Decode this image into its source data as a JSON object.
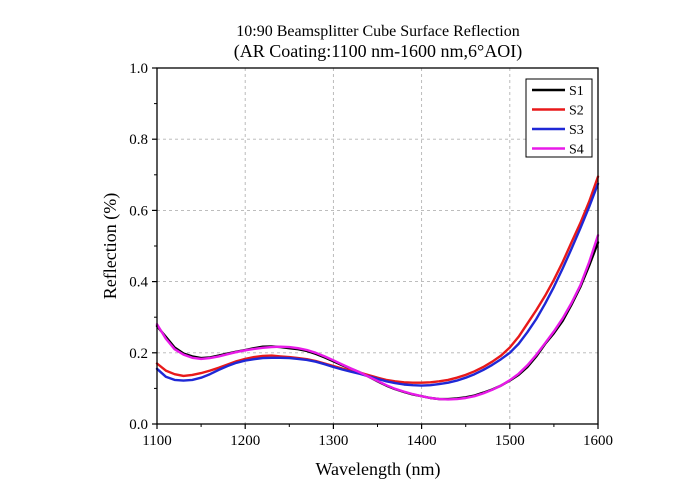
{
  "chart_data": {
    "type": "line",
    "title": "10:90 Beamsplitter Cube Surface Reflection",
    "subtitle": "(AR Coating:1100 nm-1600 nm,6°AOI)",
    "xlabel": "Wavelength (nm)",
    "ylabel": "Reflection (%)",
    "xlim": [
      1100,
      1600
    ],
    "ylim": [
      0.0,
      1.0
    ],
    "xticks": [
      "1100",
      "1200",
      "1300",
      "1400",
      "1500",
      "1600"
    ],
    "yticks": [
      "0.0",
      "0.2",
      "0.4",
      "0.6",
      "0.8",
      "1.0"
    ],
    "grid": true,
    "legend_position": "top-right",
    "series": [
      {
        "name": "S1",
        "color": "#000000",
        "x": [
          1100,
          1110,
          1120,
          1130,
          1140,
          1150,
          1160,
          1170,
          1180,
          1190,
          1200,
          1210,
          1220,
          1230,
          1240,
          1250,
          1260,
          1270,
          1280,
          1290,
          1300,
          1310,
          1320,
          1330,
          1340,
          1350,
          1360,
          1370,
          1380,
          1390,
          1400,
          1410,
          1420,
          1430,
          1440,
          1450,
          1460,
          1470,
          1480,
          1490,
          1500,
          1510,
          1520,
          1530,
          1540,
          1550,
          1560,
          1570,
          1580,
          1590,
          1600
        ],
        "y": [
          0.275,
          0.245,
          0.215,
          0.198,
          0.19,
          0.185,
          0.187,
          0.192,
          0.198,
          0.203,
          0.208,
          0.213,
          0.217,
          0.218,
          0.216,
          0.213,
          0.21,
          0.205,
          0.197,
          0.187,
          0.176,
          0.165,
          0.155,
          0.145,
          0.133,
          0.12,
          0.108,
          0.098,
          0.09,
          0.083,
          0.078,
          0.073,
          0.07,
          0.07,
          0.072,
          0.075,
          0.08,
          0.088,
          0.097,
          0.108,
          0.122,
          0.138,
          0.16,
          0.19,
          0.225,
          0.255,
          0.29,
          0.335,
          0.385,
          0.445,
          0.51
        ]
      },
      {
        "name": "S2",
        "color": "#e8191a",
        "x": [
          1100,
          1110,
          1120,
          1130,
          1140,
          1150,
          1160,
          1170,
          1180,
          1190,
          1200,
          1210,
          1220,
          1230,
          1240,
          1250,
          1260,
          1270,
          1280,
          1290,
          1300,
          1310,
          1320,
          1330,
          1340,
          1350,
          1360,
          1370,
          1380,
          1390,
          1400,
          1410,
          1420,
          1430,
          1440,
          1450,
          1460,
          1470,
          1480,
          1490,
          1500,
          1510,
          1520,
          1530,
          1540,
          1550,
          1560,
          1570,
          1580,
          1590,
          1600
        ],
        "y": [
          0.17,
          0.15,
          0.14,
          0.135,
          0.138,
          0.143,
          0.15,
          0.158,
          0.167,
          0.176,
          0.183,
          0.188,
          0.191,
          0.192,
          0.19,
          0.188,
          0.185,
          0.182,
          0.177,
          0.17,
          0.163,
          0.156,
          0.15,
          0.144,
          0.137,
          0.13,
          0.124,
          0.12,
          0.117,
          0.116,
          0.116,
          0.117,
          0.12,
          0.124,
          0.13,
          0.138,
          0.148,
          0.16,
          0.175,
          0.192,
          0.215,
          0.245,
          0.282,
          0.32,
          0.36,
          0.405,
          0.455,
          0.51,
          0.565,
          0.625,
          0.695
        ]
      },
      {
        "name": "S3",
        "color": "#1f28d6",
        "x": [
          1100,
          1110,
          1120,
          1130,
          1140,
          1150,
          1160,
          1170,
          1180,
          1190,
          1200,
          1210,
          1220,
          1230,
          1240,
          1250,
          1260,
          1270,
          1280,
          1290,
          1300,
          1310,
          1320,
          1330,
          1340,
          1350,
          1360,
          1370,
          1380,
          1390,
          1400,
          1410,
          1420,
          1430,
          1440,
          1450,
          1460,
          1470,
          1480,
          1490,
          1500,
          1510,
          1520,
          1530,
          1540,
          1550,
          1560,
          1570,
          1580,
          1590,
          1600
        ],
        "y": [
          0.155,
          0.133,
          0.124,
          0.122,
          0.124,
          0.13,
          0.14,
          0.152,
          0.163,
          0.172,
          0.178,
          0.182,
          0.185,
          0.186,
          0.186,
          0.185,
          0.183,
          0.18,
          0.175,
          0.168,
          0.16,
          0.153,
          0.147,
          0.141,
          0.134,
          0.127,
          0.12,
          0.115,
          0.111,
          0.109,
          0.108,
          0.109,
          0.112,
          0.116,
          0.122,
          0.13,
          0.14,
          0.152,
          0.166,
          0.182,
          0.2,
          0.225,
          0.258,
          0.295,
          0.338,
          0.385,
          0.437,
          0.492,
          0.55,
          0.61,
          0.675
        ]
      },
      {
        "name": "S4",
        "color": "#e81ae8",
        "x": [
          1100,
          1110,
          1120,
          1130,
          1140,
          1150,
          1160,
          1170,
          1180,
          1190,
          1200,
          1210,
          1220,
          1230,
          1240,
          1250,
          1260,
          1270,
          1280,
          1290,
          1300,
          1310,
          1320,
          1330,
          1340,
          1350,
          1360,
          1370,
          1380,
          1390,
          1400,
          1410,
          1420,
          1430,
          1440,
          1450,
          1460,
          1470,
          1480,
          1490,
          1500,
          1510,
          1520,
          1530,
          1540,
          1550,
          1560,
          1570,
          1580,
          1590,
          1600
        ],
        "y": [
          0.28,
          0.24,
          0.21,
          0.195,
          0.186,
          0.183,
          0.185,
          0.19,
          0.196,
          0.202,
          0.207,
          0.211,
          0.214,
          0.216,
          0.217,
          0.216,
          0.213,
          0.208,
          0.2,
          0.19,
          0.179,
          0.167,
          0.156,
          0.145,
          0.133,
          0.121,
          0.109,
          0.099,
          0.091,
          0.084,
          0.078,
          0.073,
          0.07,
          0.069,
          0.07,
          0.073,
          0.078,
          0.086,
          0.096,
          0.108,
          0.123,
          0.141,
          0.165,
          0.194,
          0.227,
          0.26,
          0.297,
          0.34,
          0.39,
          0.455,
          0.53
        ]
      }
    ]
  }
}
